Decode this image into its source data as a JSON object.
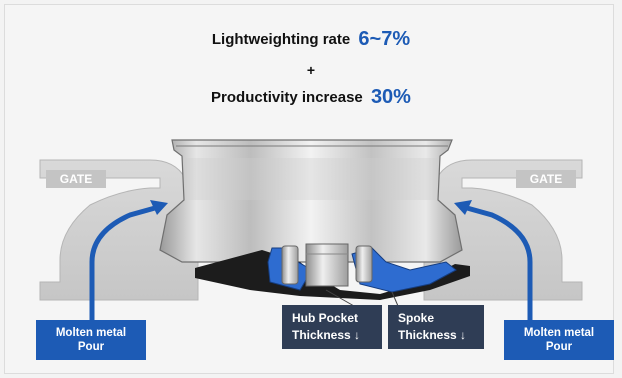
{
  "headline": {
    "line1_label": "Lightweighting rate",
    "line1_value": "6~7%",
    "plus": "+",
    "line2_label": "Productivity increase",
    "line2_value": "30%"
  },
  "gates": {
    "left": "GATE",
    "right": "GATE"
  },
  "pour_left": {
    "line1": "Molten metal",
    "line2": "Pour"
  },
  "pour_right": {
    "line1": "Molten metal",
    "line2": "Pour"
  },
  "hub_pocket": {
    "line1": "Hub Pocket",
    "line2": "Thickness ↓"
  },
  "spoke": {
    "line1": "Spoke",
    "line2": "Thickness ↓"
  },
  "colors": {
    "accent_blue": "#1d5bb5",
    "dark_navy": "#2f3d55",
    "gate_gray": "#c4c4c4"
  }
}
